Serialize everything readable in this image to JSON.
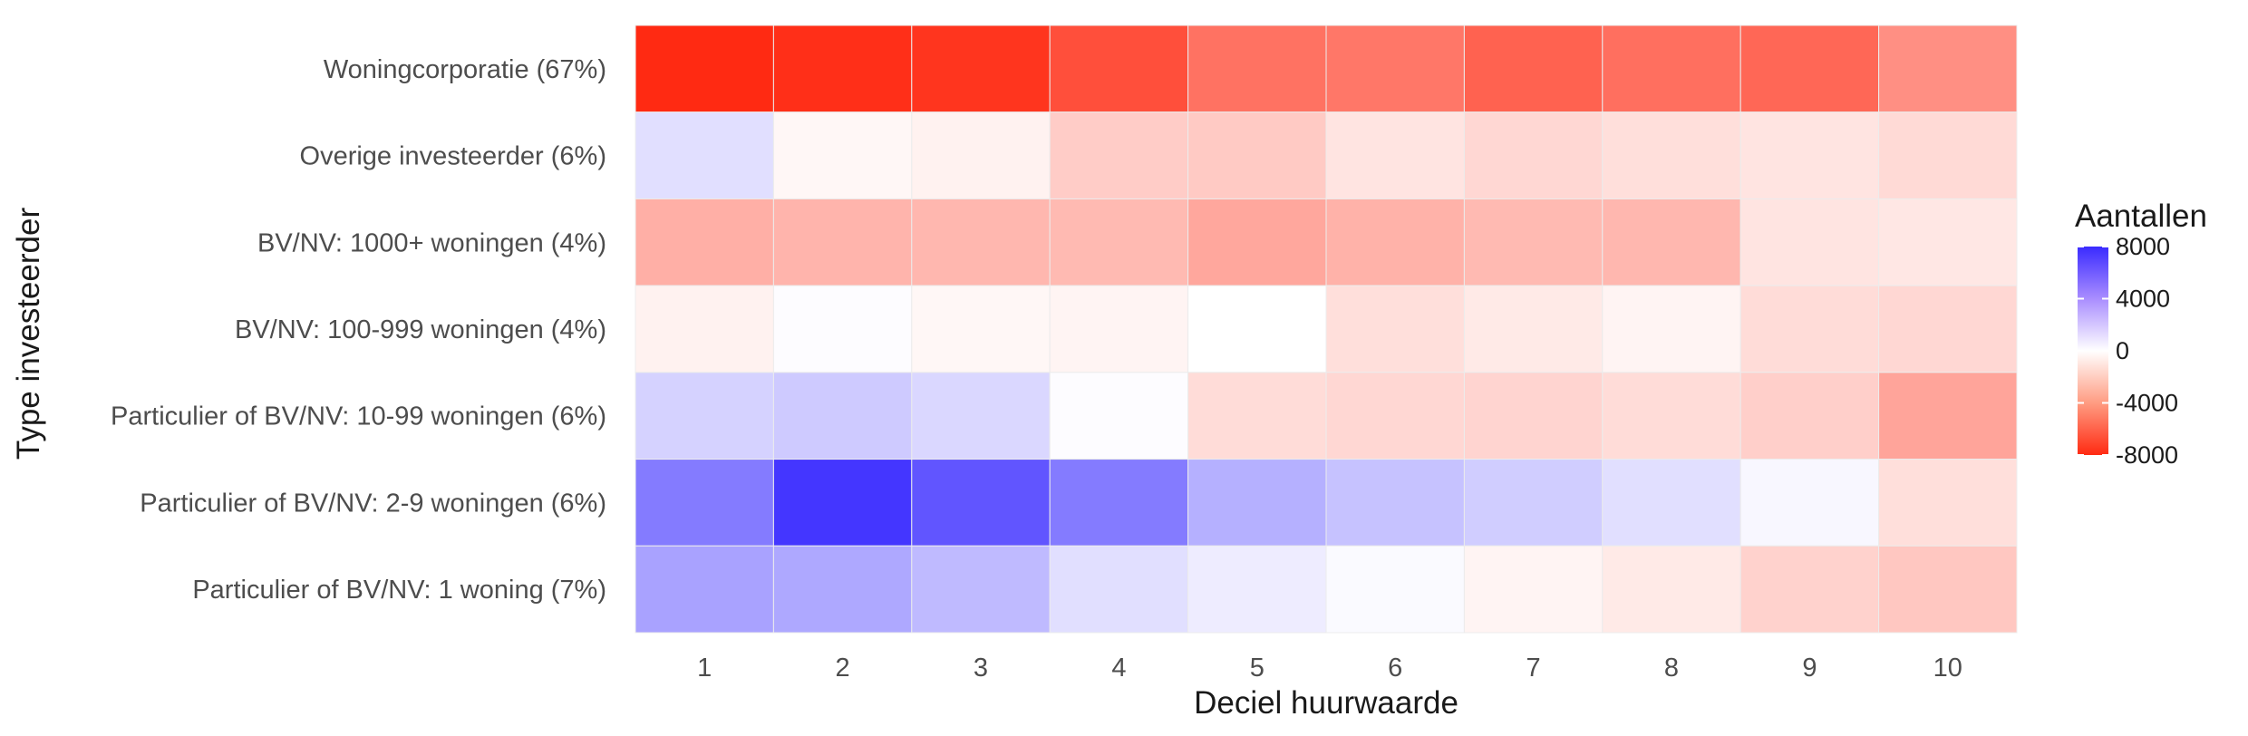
{
  "chart_data": {
    "type": "heatmap",
    "xlabel": "Deciel huurwaarde",
    "ylabel": "Type investeerder",
    "x": [
      "1",
      "2",
      "3",
      "4",
      "5",
      "6",
      "7",
      "8",
      "9",
      "10"
    ],
    "y": [
      "Woningcorporatie (67%)",
      "Overige investeerder (6%)",
      "BV/NV: 1000+ woningen (4%)",
      "BV/NV: 100-999 woningen (4%)",
      "Particulier of BV/NV: 10-99 woningen (6%)",
      "Particulier of BV/NV: 2-9 woningen (6%)",
      "Particulier of BV/NV: 1 woning (7%)"
    ],
    "values": [
      [
        -8000,
        -7800,
        -7600,
        -6600,
        -5300,
        -5100,
        -5900,
        -5400,
        -5700,
        -4200
      ],
      [
        1200,
        -300,
        -500,
        -1900,
        -2000,
        -1000,
        -1500,
        -1200,
        -1000,
        -1400
      ],
      [
        -3000,
        -2800,
        -2700,
        -2600,
        -3300,
        -2900,
        -2600,
        -2700,
        -1000,
        -900
      ],
      [
        -500,
        100,
        -300,
        -400,
        0,
        -1200,
        -800,
        -400,
        -1300,
        -1500
      ],
      [
        1700,
        2000,
        1500,
        100,
        -1300,
        -1500,
        -1600,
        -1300,
        -1800,
        -3400
      ],
      [
        5000,
        7600,
        6400,
        5000,
        3000,
        2300,
        1900,
        1200,
        300,
        -1200
      ],
      [
        3500,
        3300,
        2600,
        1200,
        700,
        200,
        -400,
        -800,
        -1700,
        -2100
      ]
    ],
    "legend": {
      "title": "Aantallen",
      "ticks": [
        8000,
        4000,
        0,
        -4000,
        -8000
      ],
      "tick_labels": [
        "8000",
        "4000",
        "0",
        "-4000",
        "-8000"
      ],
      "limits": [
        -8000,
        8000
      ],
      "position": "right"
    },
    "colors": {
      "low": "#ff2a12",
      "mid": "#ffffff",
      "high": "#3a2bff"
    },
    "grid": false
  }
}
